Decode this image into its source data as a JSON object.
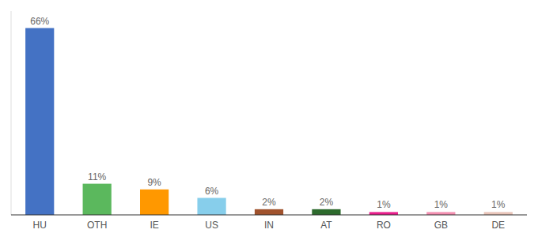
{
  "chart_data": {
    "type": "bar",
    "categories": [
      "HU",
      "OTH",
      "IE",
      "US",
      "IN",
      "AT",
      "RO",
      "GB",
      "DE"
    ],
    "values": [
      66,
      11,
      9,
      6,
      2,
      2,
      1,
      1,
      1
    ],
    "value_labels": [
      "66%",
      "11%",
      "9%",
      "6%",
      "2%",
      "2%",
      "1%",
      "1%",
      "1%"
    ],
    "colors": [
      "#4472C4",
      "#5BB85D",
      "#FF9800",
      "#87CEEB",
      "#A0522D",
      "#2D6A2D",
      "#E91E8C",
      "#F48FB1",
      "#E8C4B8"
    ],
    "ylim": [
      0,
      72
    ],
    "data_labels": true,
    "tick_labels": "x"
  }
}
